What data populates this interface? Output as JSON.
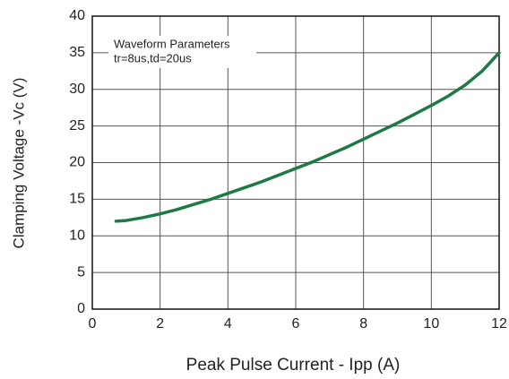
{
  "chart_data": {
    "type": "line",
    "xlabel": "Peak Pulse Current - Ipp (A)",
    "ylabel": "Clamping Voltage -Vc  (V)",
    "annotations": [
      "Waveform Parameters",
      "tr=8us,td=20us"
    ],
    "x": [
      0.7,
      1,
      1.5,
      2,
      2.5,
      3,
      3.5,
      4,
      4.5,
      5,
      5.5,
      6,
      6.5,
      7,
      7.5,
      8,
      8.5,
      9,
      9.5,
      10,
      10.5,
      11,
      11.5,
      12
    ],
    "series": [
      {
        "color": "#1e7a45",
        "values": [
          12,
          12.1,
          12.5,
          13,
          13.6,
          14.3,
          15,
          15.8,
          16.6,
          17.4,
          18.3,
          19.2,
          20.1,
          21.1,
          22.1,
          23.2,
          24.3,
          25.4,
          26.6,
          27.8,
          29.1,
          30.6,
          32.5,
          35
        ]
      }
    ],
    "xlim": [
      0,
      12
    ],
    "xticks": [
      0,
      2,
      4,
      6,
      8,
      10,
      12
    ],
    "ylim": [
      0,
      40
    ],
    "yticks": [
      0,
      5,
      10,
      15,
      20,
      25,
      30,
      35,
      40
    ],
    "grid": true
  }
}
